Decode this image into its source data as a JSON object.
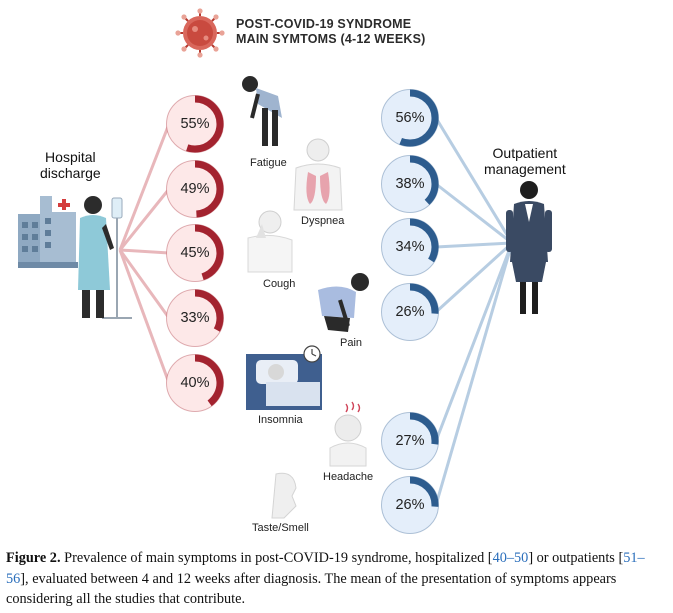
{
  "title": {
    "line1": "POST-COVID-19 SYNDROME",
    "line2": "MAIN SYMTOMS (4-12 WEEKS)"
  },
  "groups": {
    "hospital": {
      "line1": "Hospital",
      "line2": "discharge"
    },
    "outpatient": {
      "line1": "Outpatient",
      "line2": "management"
    }
  },
  "symptoms": [
    "Fatigue",
    "Dyspnea",
    "Cough",
    "Pain",
    "Insomnia",
    "Headache",
    "Taste/Smell"
  ],
  "hospital_values": [
    {
      "symptom": "Fatigue",
      "value": 55,
      "label": "55%"
    },
    {
      "symptom": "Dyspnea",
      "value": 49,
      "label": "49%"
    },
    {
      "symptom": "Cough",
      "value": 45,
      "label": "45%"
    },
    {
      "symptom": "Pain",
      "value": 33,
      "label": "33%"
    },
    {
      "symptom": "Insomnia",
      "value": 40,
      "label": "40%"
    }
  ],
  "outpatient_values": [
    {
      "symptom": "Fatigue",
      "value": 56,
      "label": "56%"
    },
    {
      "symptom": "Dyspnea",
      "value": 38,
      "label": "38%"
    },
    {
      "symptom": "Cough",
      "value": 34,
      "label": "34%"
    },
    {
      "symptom": "Pain",
      "value": 26,
      "label": "26%"
    },
    {
      "symptom": "Headache",
      "value": 27,
      "label": "27%"
    },
    {
      "symptom": "Taste/Smell",
      "value": 26,
      "label": "26%"
    }
  ],
  "colors": {
    "hospital_arc": "#a3232f",
    "hospital_fill": "#fde8e8",
    "hospital_line": "#e8b7bb",
    "outpatient_arc": "#2d5c8e",
    "outpatient_fill": "#e4eefa",
    "outpatient_line": "#b7cde2",
    "reference_link": "#2a6ebb"
  },
  "caption": {
    "label": "Figure 2.",
    "part1": " Prevalence of main symptoms in post-COVID-19 syndrome, hospitalized [",
    "ref1": "40–50",
    "part2": "] or outpatients [",
    "ref2": "51–56",
    "part3": "], evaluated between 4 and 12 weeks after diagnosis. The mean of the presentation of symptoms appears considering all the studies that contribute."
  }
}
